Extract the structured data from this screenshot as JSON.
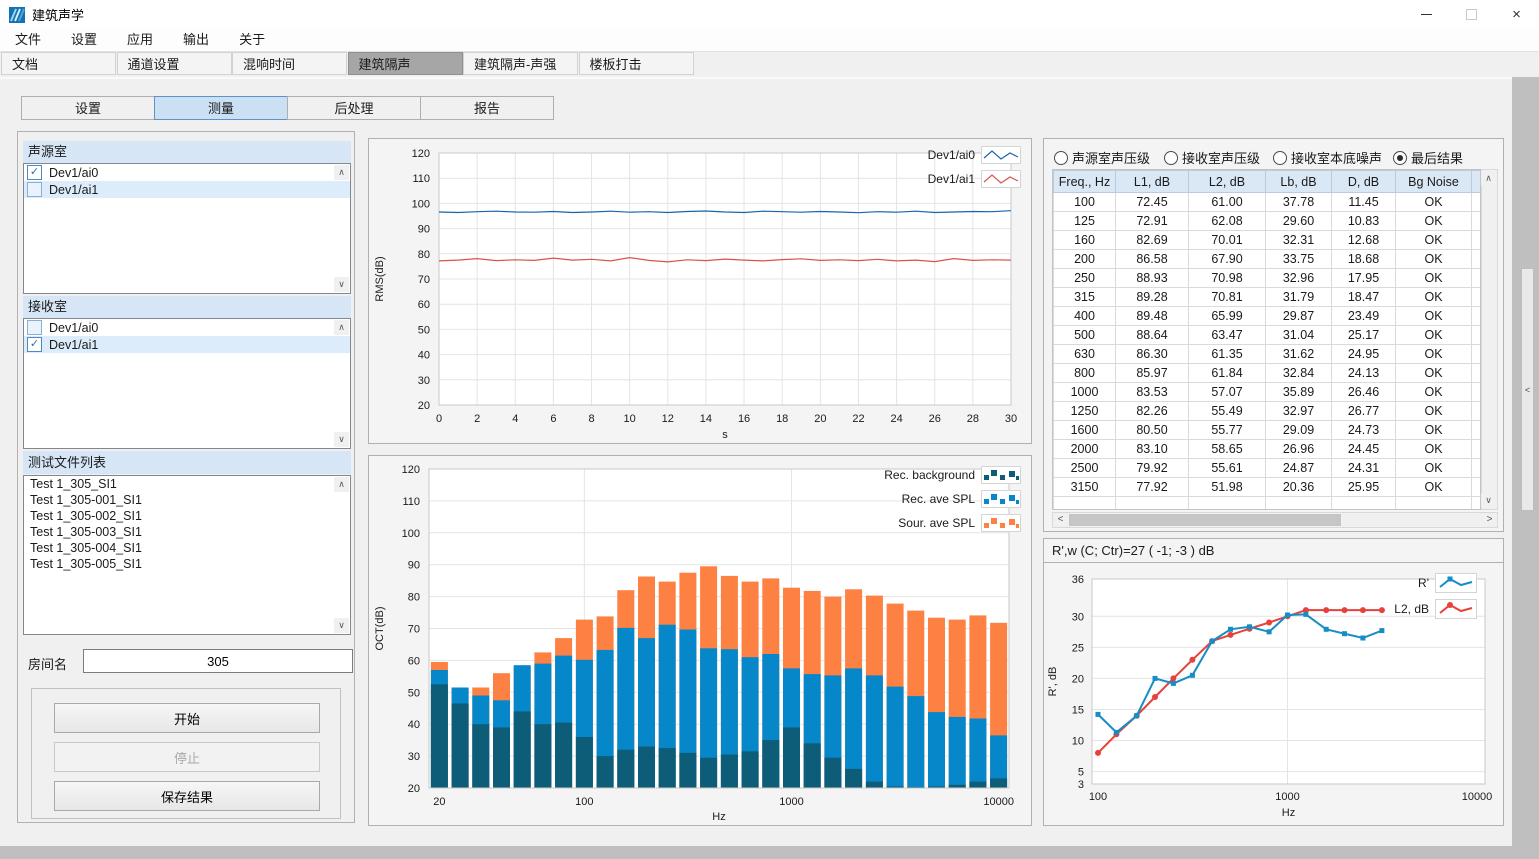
{
  "window": {
    "title": "建筑声学"
  },
  "menu": {
    "items": [
      "文件",
      "设置",
      "应用",
      "输出",
      "关于"
    ]
  },
  "main_tabs": {
    "items": [
      "文档",
      "通道设置",
      "混响时间",
      "建筑隔声",
      "建筑隔声-声强",
      "楼板打击"
    ],
    "active_index": 3
  },
  "sub_tabs": {
    "items": [
      "设置",
      "测量",
      "后处理",
      "报告"
    ],
    "active_index": 1
  },
  "left_panel": {
    "source_room": {
      "title": "声源室",
      "items": [
        {
          "label": "Dev1/ai0",
          "checked": true,
          "selected": false
        },
        {
          "label": "Dev1/ai1",
          "checked": false,
          "selected": true
        }
      ]
    },
    "receive_room": {
      "title": "接收室",
      "items": [
        {
          "label": "Dev1/ai0",
          "checked": false,
          "selected": false
        },
        {
          "label": "Dev1/ai1",
          "checked": true,
          "selected": true
        }
      ]
    },
    "file_list": {
      "title": "测试文件列表",
      "items": [
        "Test 1_305_SI1",
        "Test 1_305-001_SI1",
        "Test 1_305-002_SI1",
        "Test 1_305-003_SI1",
        "Test 1_305-004_SI1",
        "Test 1_305-005_SI1"
      ]
    },
    "room_name": {
      "label": "房间名",
      "value": "305"
    },
    "buttons": {
      "start": "开始",
      "stop": "停止",
      "save": "保存结果"
    }
  },
  "results_panel": {
    "radios": [
      {
        "label": "声源室声压级",
        "selected": false
      },
      {
        "label": "接收室声压级",
        "selected": false
      },
      {
        "label": "接收室本底噪声",
        "selected": false
      },
      {
        "label": "最后结果",
        "selected": true
      }
    ],
    "table": {
      "headers": [
        "Freq., Hz",
        "L1, dB",
        "L2, dB",
        "Lb, dB",
        "D, dB",
        "Bg Noise"
      ],
      "rows": [
        [
          "100",
          "72.45",
          "61.00",
          "37.78",
          "11.45",
          "OK"
        ],
        [
          "125",
          "72.91",
          "62.08",
          "29.60",
          "10.83",
          "OK"
        ],
        [
          "160",
          "82.69",
          "70.01",
          "32.31",
          "12.68",
          "OK"
        ],
        [
          "200",
          "86.58",
          "67.90",
          "33.75",
          "18.68",
          "OK"
        ],
        [
          "250",
          "88.93",
          "70.98",
          "32.96",
          "17.95",
          "OK"
        ],
        [
          "315",
          "89.28",
          "70.81",
          "31.79",
          "18.47",
          "OK"
        ],
        [
          "400",
          "89.48",
          "65.99",
          "29.87",
          "23.49",
          "OK"
        ],
        [
          "500",
          "88.64",
          "63.47",
          "31.04",
          "25.17",
          "OK"
        ],
        [
          "630",
          "86.30",
          "61.35",
          "31.62",
          "24.95",
          "OK"
        ],
        [
          "800",
          "85.97",
          "61.84",
          "32.84",
          "24.13",
          "OK"
        ],
        [
          "1000",
          "83.53",
          "57.07",
          "35.89",
          "26.46",
          "OK"
        ],
        [
          "1250",
          "82.26",
          "55.49",
          "32.97",
          "26.77",
          "OK"
        ],
        [
          "1600",
          "80.50",
          "55.77",
          "29.09",
          "24.73",
          "OK"
        ],
        [
          "2000",
          "83.10",
          "58.65",
          "26.96",
          "24.45",
          "OK"
        ],
        [
          "2500",
          "79.92",
          "55.61",
          "24.87",
          "24.31",
          "OK"
        ],
        [
          "3150",
          "77.92",
          "51.98",
          "20.36",
          "25.95",
          "OK"
        ]
      ],
      "empty_rows": 3
    }
  },
  "rating_panel": {
    "title": "R',w (C; Ctr)=27 ( -1; -3 ) dB"
  },
  "chart_data": [
    {
      "id": "rms",
      "type": "line",
      "title": "",
      "xlabel": "s",
      "ylabel": "RMS(dB)",
      "xlim": [
        0,
        30
      ],
      "xtick_step": 2,
      "ylim": [
        20,
        120
      ],
      "ytick_step": 10,
      "grid": true,
      "legend_position": "top-right",
      "series": [
        {
          "name": "Dev1/ai0",
          "color": "#1a64ad",
          "values": [
            96.6,
            96.4,
            96.7,
            96.9,
            96.6,
            96.5,
            96.8,
            96.4,
            96.6,
            96.9,
            96.5,
            96.7,
            96.4,
            96.8,
            97.0,
            96.6,
            96.4,
            96.9,
            96.7,
            96.5,
            96.8,
            96.6,
            96.3,
            96.7,
            96.5,
            96.9,
            96.4,
            96.6,
            96.8,
            96.7,
            97.1
          ]
        },
        {
          "name": "Dev1/ai1",
          "color": "#d9534b",
          "values": [
            77.2,
            77.5,
            78.1,
            77.3,
            77.6,
            77.4,
            78.3,
            77.5,
            77.8,
            77.2,
            78.5,
            77.4,
            76.8,
            77.6,
            77.3,
            77.9,
            77.5,
            77.2,
            77.7,
            78.0,
            77.4,
            77.6,
            77.3,
            77.8,
            77.2,
            77.5,
            76.9,
            78.1,
            77.4,
            77.6,
            77.5
          ]
        }
      ]
    },
    {
      "id": "oct",
      "type": "bar",
      "title": "",
      "xlabel": "Hz",
      "ylabel": "OCT(dB)",
      "ylim": [
        20,
        120
      ],
      "ytick_step": 10,
      "x_scale": "log",
      "xticks": [
        20,
        100,
        1000,
        10000
      ],
      "grid": true,
      "legend_position": "top-right",
      "categories": [
        20,
        25,
        31.5,
        40,
        50,
        63,
        80,
        100,
        125,
        160,
        200,
        250,
        315,
        400,
        500,
        630,
        800,
        1000,
        1250,
        1600,
        2000,
        2500,
        3150,
        4000,
        5000,
        6300,
        8000,
        10000
      ],
      "series": [
        {
          "name": "Sour. ave SPL",
          "color": "#fd8143",
          "values": [
            59.5,
            51,
            51.5,
            56,
            58,
            62.5,
            67,
            72.8,
            73.8,
            82,
            86.3,
            84.7,
            87.5,
            89.5,
            86.5,
            84.7,
            85.7,
            82.8,
            81.8,
            80,
            82.3,
            80.3,
            77.8,
            75.6,
            73.4,
            72.8,
            74.1,
            71.8
          ]
        },
        {
          "name": "Rec. ave SPL",
          "color": "#0587c9",
          "values": [
            57,
            51.5,
            49,
            47.5,
            58.5,
            59,
            61.5,
            60.2,
            63.3,
            70.2,
            67,
            71.2,
            69.7,
            63.8,
            63.5,
            61,
            62,
            57.5,
            55.7,
            55.3,
            57.5,
            55.3,
            51.8,
            48.8,
            43.8,
            42.3,
            41.8,
            36.5
          ]
        },
        {
          "name": "Rec. background",
          "color": "#0e5d78",
          "values": [
            52.5,
            46.5,
            40,
            39,
            44,
            40,
            40.5,
            36,
            30,
            32,
            33,
            32.5,
            31,
            29.5,
            30.5,
            31.5,
            35,
            39,
            34,
            29.5,
            26,
            22,
            20.5,
            20.3,
            20.5,
            21,
            22,
            23
          ]
        }
      ],
      "legend_order": [
        2,
        1,
        0
      ]
    },
    {
      "id": "rating",
      "type": "line",
      "title": "R',w (C; Ctr)=27 ( -1; -3 ) dB",
      "xlabel": "Hz",
      "ylabel": "R', dB",
      "x_scale": "log",
      "xticks": [
        100,
        1000,
        10000
      ],
      "ylim": [
        3,
        36
      ],
      "yticks": [
        36,
        30,
        25,
        20,
        15,
        10,
        5,
        3
      ],
      "grid": true,
      "legend_position": "top-right",
      "x": [
        100,
        125,
        160,
        200,
        250,
        315,
        400,
        500,
        630,
        800,
        1000,
        1250,
        1600,
        2000,
        2500,
        3150
      ],
      "series": [
        {
          "name": "R'",
          "color": "#168ec5",
          "marker": "square",
          "values": [
            14.2,
            11.3,
            14,
            20,
            19.2,
            20.5,
            26,
            27.9,
            28.3,
            27.5,
            30.2,
            30.3,
            27.9,
            27.2,
            26.5,
            27.7
          ]
        },
        {
          "name": "L2, dB",
          "color": "#e8403a",
          "marker": "circle",
          "values": [
            8,
            11,
            14,
            17,
            20,
            23,
            26,
            27,
            28,
            29,
            30,
            31,
            31,
            31,
            31,
            31
          ]
        }
      ]
    }
  ]
}
